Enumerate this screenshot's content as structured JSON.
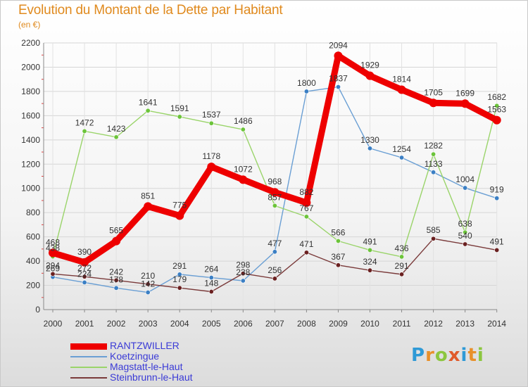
{
  "header": {
    "title": "Evolution du Montant de la Dette par Habitant",
    "subtitle": "(en €)"
  },
  "logo": {
    "text": "Proxiti",
    "colors": [
      "#2f9ad6",
      "#e8902a",
      "#8cc63f",
      "#e05a2b",
      "#2f9ad6",
      "#e8902a",
      "#8cc63f"
    ]
  },
  "chart_data": {
    "type": "line",
    "title": "Evolution du Montant de la Dette par Habitant",
    "subtitle": "(en €)",
    "xlabel": "",
    "ylabel": "",
    "x": [
      "2000",
      "2001",
      "2002",
      "2003",
      "2004",
      "2005",
      "2006",
      "2007",
      "2008",
      "2009",
      "2010",
      "2011",
      "2012",
      "2013",
      "2014"
    ],
    "ylim": [
      0,
      2200
    ],
    "yticks": [
      0,
      200,
      400,
      600,
      800,
      1000,
      1200,
      1400,
      1600,
      1800,
      2000,
      2200
    ],
    "grid": true,
    "legend_position": "bottom-left",
    "series": [
      {
        "name": "Koetzingue",
        "color": "#6a9fd4",
        "marker": "#3b7fc4",
        "width": "thin",
        "values": [
          269,
          224,
          178,
          142,
          291,
          264,
          238,
          477,
          1800,
          1837,
          1330,
          1254,
          1133,
          1004,
          919
        ],
        "labels": [
          "269",
          "224",
          "178",
          "142",
          "291",
          "264",
          "238",
          "477",
          "1800",
          "1837",
          "1330",
          "1254",
          "1133",
          "1004",
          "919"
        ]
      },
      {
        "name": "Magstatt-le-Haut",
        "color": "#9ad46a",
        "marker": "#6cc43a",
        "width": "thin",
        "values": [
          438,
          1472,
          1423,
          1641,
          1591,
          1537,
          1486,
          857,
          767,
          566,
          491,
          436,
          1282,
          638,
          1682
        ],
        "labels": [
          "438",
          "1472",
          "1423",
          "1641",
          "1591",
          "1537",
          "1486",
          "857",
          "767",
          "566",
          "491",
          "436",
          "1282",
          "638",
          "1682"
        ]
      },
      {
        "name": "Steinbrunn-le-Haut",
        "color": "#7a3a3a",
        "marker": "#6a2020",
        "width": "thin",
        "values": [
          294,
          272,
          242,
          210,
          179,
          148,
          298,
          256,
          471,
          367,
          324,
          291,
          585,
          540,
          491
        ],
        "labels": [
          "294",
          "272",
          "242",
          "210",
          "179",
          "148",
          "298",
          "256",
          "471",
          "367",
          "324",
          "291",
          "585",
          "540",
          "491"
        ]
      },
      {
        "name": "RANTZWILLER",
        "color": "#ee0000",
        "marker": "#ee0000",
        "width": "thick",
        "values": [
          468,
          390,
          565,
          851,
          775,
          1178,
          1072,
          968,
          882,
          2094,
          1929,
          1814,
          1705,
          1699,
          1563
        ],
        "labels": [
          "468",
          "390",
          "565",
          "851",
          "775",
          "1178",
          "1072",
          "968",
          "882",
          "2094",
          "1929",
          "1814",
          "1705",
          "1699",
          "1563"
        ]
      }
    ]
  },
  "legend": {
    "items": [
      {
        "label": "RANTZWILLER",
        "color": "#ee0000",
        "width": "thick"
      },
      {
        "label": "Koetzingue",
        "color": "#6a9fd4",
        "width": "thin"
      },
      {
        "label": "Magstatt-le-Haut",
        "color": "#9ad46a",
        "width": "thin"
      },
      {
        "label": "Steinbrunn-le-Haut",
        "color": "#7a3a3a",
        "width": "thin"
      }
    ]
  }
}
